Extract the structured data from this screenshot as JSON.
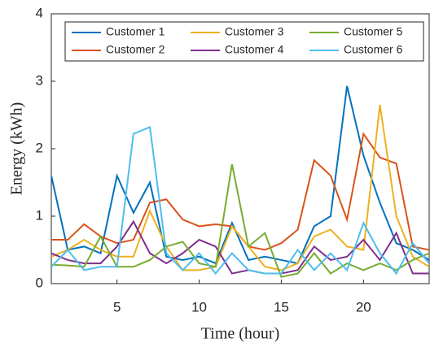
{
  "chart_data": {
    "type": "line",
    "x_label": "Time (hour)",
    "y_label": "Energy (kWh)",
    "x": [
      1,
      2,
      3,
      4,
      5,
      6,
      7,
      8,
      9,
      10,
      11,
      12,
      13,
      14,
      15,
      16,
      17,
      18,
      19,
      20,
      21,
      22,
      23,
      24
    ],
    "xlim": [
      1,
      24
    ],
    "xticks": [
      5,
      10,
      15,
      20
    ],
    "ylim": [
      0,
      4
    ],
    "yticks": [
      0,
      1,
      2,
      3,
      4
    ],
    "legend": "top",
    "series": [
      {
        "name": "Customer 1",
        "color": "#0072bd",
        "values": [
          1.6,
          0.5,
          0.55,
          0.45,
          1.6,
          1.05,
          1.5,
          0.4,
          0.35,
          0.4,
          0.3,
          0.9,
          0.35,
          0.4,
          0.35,
          0.3,
          0.85,
          1.0,
          2.93,
          1.9,
          1.2,
          0.6,
          0.5,
          0.35
        ]
      },
      {
        "name": "Customer 2",
        "color": "#d95319",
        "values": [
          0.65,
          0.65,
          0.88,
          0.7,
          0.6,
          0.65,
          1.2,
          1.25,
          0.95,
          0.85,
          0.88,
          0.85,
          0.55,
          0.5,
          0.6,
          0.8,
          1.83,
          1.6,
          0.95,
          2.22,
          1.87,
          1.78,
          0.55,
          0.5
        ]
      },
      {
        "name": "Customer 3",
        "color": "#edb120",
        "values": [
          0.4,
          0.5,
          0.65,
          0.5,
          0.4,
          0.4,
          1.08,
          0.55,
          0.2,
          0.2,
          0.25,
          0.85,
          0.55,
          0.25,
          0.2,
          0.3,
          0.7,
          0.8,
          0.55,
          0.5,
          2.65,
          1.0,
          0.4,
          0.25
        ]
      },
      {
        "name": "Customer 4",
        "color": "#7e2f8e",
        "values": [
          0.45,
          0.35,
          0.3,
          0.3,
          0.55,
          0.92,
          0.45,
          0.3,
          0.45,
          0.65,
          0.55,
          0.15,
          0.2,
          0.15,
          0.15,
          0.2,
          0.55,
          0.35,
          0.4,
          0.65,
          0.35,
          0.75,
          0.15,
          0.15
        ]
      },
      {
        "name": "Customer 5",
        "color": "#77ac30",
        "values": [
          0.28,
          0.27,
          0.25,
          0.7,
          0.25,
          0.25,
          0.35,
          0.55,
          0.62,
          0.3,
          0.25,
          1.77,
          0.55,
          0.75,
          0.1,
          0.15,
          0.45,
          0.15,
          0.3,
          0.2,
          0.3,
          0.2,
          0.35,
          0.45
        ]
      },
      {
        "name": "Customer 6",
        "color": "#4dbeee",
        "values": [
          0.25,
          0.5,
          0.2,
          0.25,
          0.25,
          2.22,
          2.32,
          0.45,
          0.2,
          0.45,
          0.15,
          0.45,
          0.2,
          0.15,
          0.15,
          0.5,
          0.2,
          0.45,
          0.2,
          0.9,
          0.45,
          0.15,
          0.6,
          0.3
        ]
      }
    ]
  }
}
